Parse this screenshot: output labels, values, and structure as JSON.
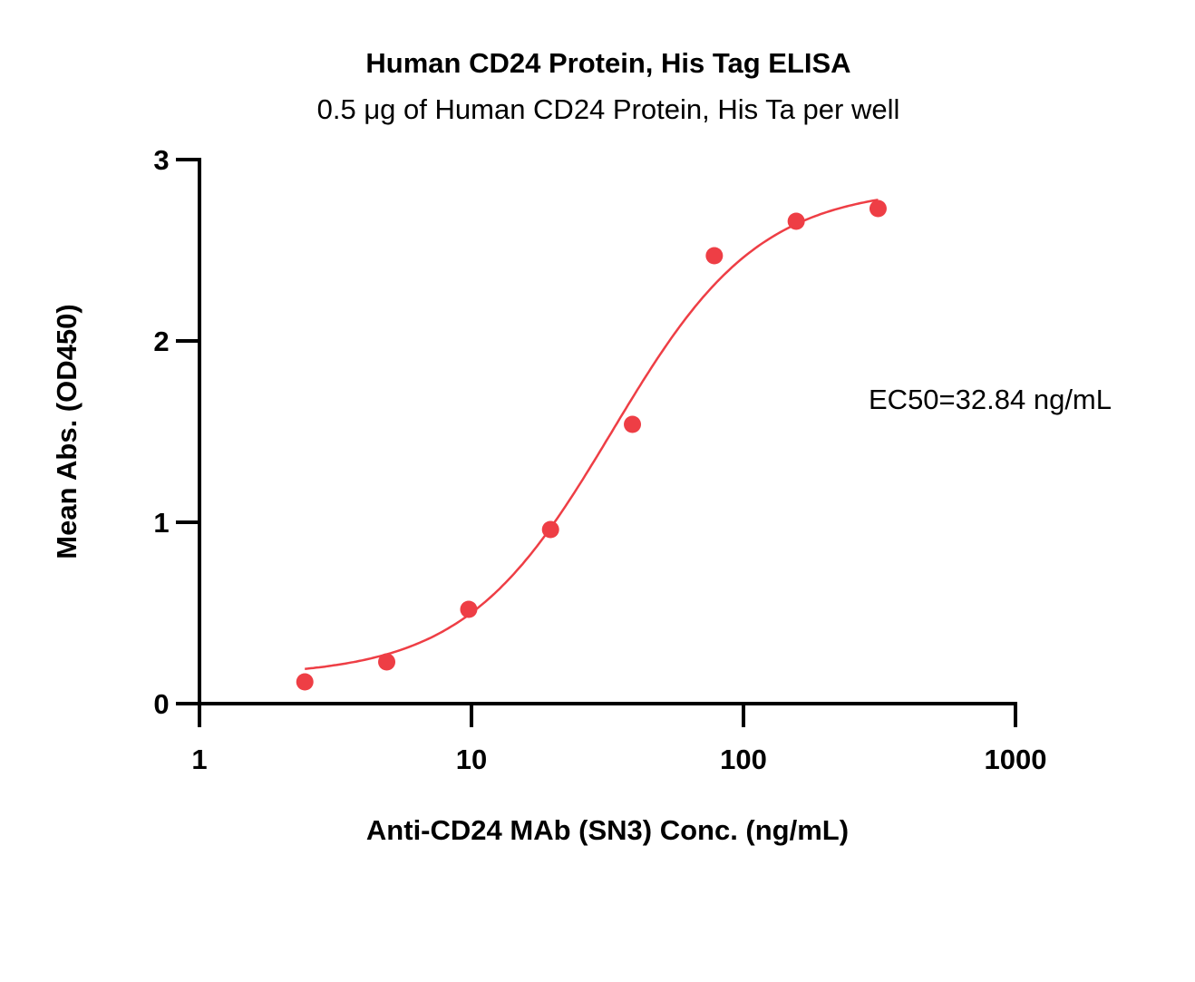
{
  "chart_data": {
    "type": "scatter",
    "title": "Human CD24 Protein, His Tag ELISA",
    "subtitle": "0.5 μg of Human CD24 Protein, His Ta per well",
    "xlabel": "Anti-CD24 MAb (SN3) Conc. (ng/mL)",
    "ylabel": "Mean Abs. (OD450)",
    "xscale": "log",
    "xlim": [
      1,
      1000
    ],
    "ylim": [
      0,
      3
    ],
    "xticks": [
      1,
      10,
      100,
      1000
    ],
    "xtick_labels": [
      "1",
      "10",
      "100",
      "1000"
    ],
    "yticks": [
      0,
      1,
      2,
      3
    ],
    "ytick_labels": [
      "0",
      "1",
      "2",
      "3"
    ],
    "grid": false,
    "series": [
      {
        "color": "#ee3e45",
        "x": [
          2.44,
          4.88,
          9.77,
          19.53,
          39.06,
          78.13,
          156.25,
          312.5
        ],
        "y": [
          0.12,
          0.23,
          0.52,
          0.96,
          1.54,
          2.47,
          2.66,
          2.73
        ]
      }
    ],
    "fit_curve": {
      "model": "4PL",
      "color": "#ee3e45",
      "bottom": 0.15,
      "top": 2.85,
      "ec50": 32.84,
      "hill": 1.6,
      "x_range": [
        2.44,
        312.5
      ]
    },
    "annotation": "EC50=32.84 ng/mL"
  }
}
